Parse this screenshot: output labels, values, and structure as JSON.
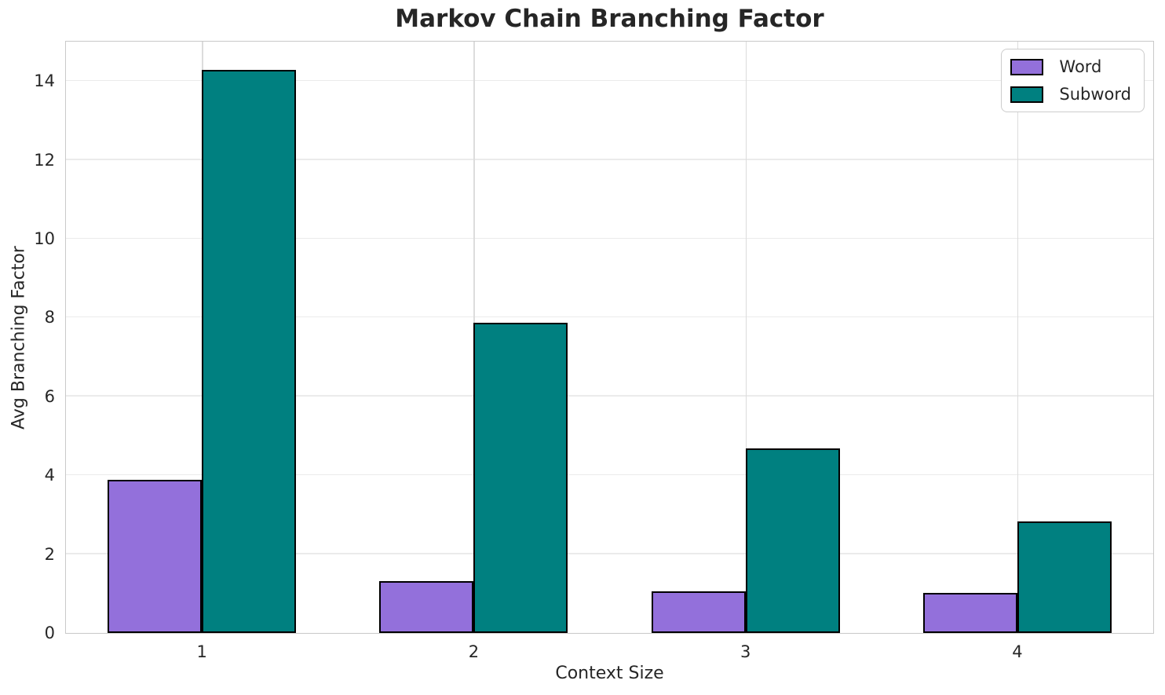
{
  "chart_data": {
    "type": "bar",
    "title": "Markov Chain Branching Factor",
    "xlabel": "Context Size",
    "ylabel": "Avg Branching Factor",
    "categories": [
      "1",
      "2",
      "3",
      "4"
    ],
    "series": [
      {
        "name": "Word",
        "color": "#9370DB",
        "values": [
          3.88,
          1.31,
          1.05,
          1.02
        ]
      },
      {
        "name": "Subword",
        "color": "#008080",
        "values": [
          14.29,
          7.86,
          4.68,
          2.83
        ]
      }
    ],
    "ylim": [
      0,
      15
    ],
    "yticks": [
      0,
      2,
      4,
      6,
      8,
      10,
      12,
      14
    ],
    "grid": "both",
    "legend_position": "upper right",
    "bar_edge_color": "#000000",
    "background_color": "#ffffff",
    "text_color": "#262626",
    "gridline_color": "#ebebeb",
    "frame_color": "#c9c9c9"
  }
}
